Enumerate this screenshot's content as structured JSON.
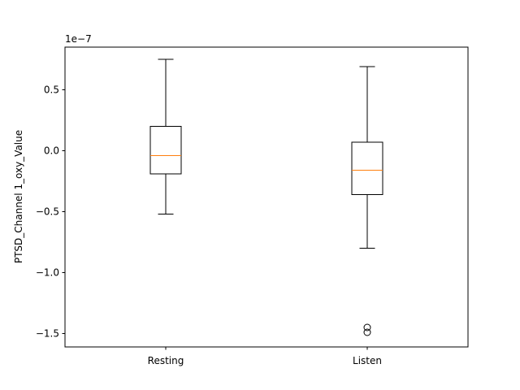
{
  "chart_data": {
    "type": "box",
    "ylabel": "PTSD_Channel 1_oxy_Value",
    "y_offset_label": "1e−7",
    "ylim": [
      -1.61,
      0.85
    ],
    "yticks": [
      -1.5,
      -1.0,
      -0.5,
      0.0,
      0.5
    ],
    "ytick_labels": [
      "−1.5",
      "−1.0",
      "−0.5",
      "0.0",
      "0.5"
    ],
    "categories": [
      "Resting",
      "Listen"
    ],
    "boxes": [
      {
        "category": "Resting",
        "whisker_low": -0.52,
        "q1": -0.19,
        "median": -0.04,
        "q3": 0.2,
        "whisker_high": 0.75,
        "outliers": []
      },
      {
        "category": "Listen",
        "whisker_low": -0.8,
        "q1": -0.36,
        "median": -0.16,
        "q3": 0.07,
        "whisker_high": 0.69,
        "outliers": [
          -1.45,
          -1.49
        ]
      }
    ],
    "colors": {
      "box": "#000000",
      "median": "#ff7f0e",
      "outlier": "#000000"
    },
    "grid": false
  }
}
